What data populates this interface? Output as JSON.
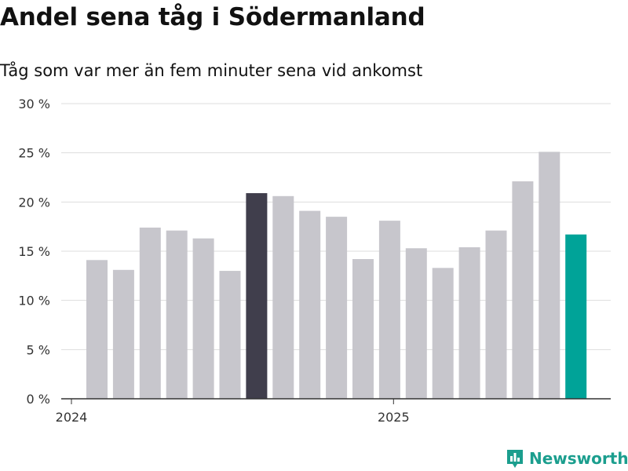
{
  "header": {
    "title": "Andel sena tåg i Södermanland",
    "subtitle": "Tåg som var mer än fem minuter sena vid ankomst"
  },
  "brand": {
    "name": "Newsworthy",
    "icon": "bar-chart-logo-icon"
  },
  "colors": {
    "default_bar": "#c7c6cc",
    "highlight_bar": "#403e4c",
    "latest_bar": "#00a398",
    "grid": "#dddddd",
    "axis": "#333333",
    "brand": "#1b9e8e"
  },
  "chart_data": {
    "type": "bar",
    "title": "Andel sena tåg i Södermanland",
    "subtitle": "Tåg som var mer än fem minuter sena vid ankomst",
    "values": [
      14.1,
      13.1,
      17.4,
      17.1,
      16.3,
      13.0,
      20.9,
      20.6,
      19.1,
      18.5,
      14.2,
      18.1,
      15.3,
      13.3,
      15.4,
      17.1,
      22.1,
      25.1,
      16.7
    ],
    "bar_colors": [
      "default",
      "default",
      "default",
      "default",
      "default",
      "default",
      "highlight",
      "default",
      "default",
      "default",
      "default",
      "default",
      "default",
      "default",
      "default",
      "default",
      "default",
      "default",
      "latest"
    ],
    "x_tick_labels": [
      {
        "label": "2024",
        "bar_index": 0
      },
      {
        "label": "2025",
        "bar_index": 12
      }
    ],
    "y_ticks": [
      0,
      5,
      10,
      15,
      20,
      25,
      30
    ],
    "y_tick_labels": [
      "0 %",
      "5 %",
      "10 %",
      "15 %",
      "20 %",
      "25 %",
      "30 %"
    ],
    "ylim": [
      0,
      30
    ],
    "xlabel": "",
    "ylabel": "",
    "grid": true,
    "legend": "none"
  }
}
